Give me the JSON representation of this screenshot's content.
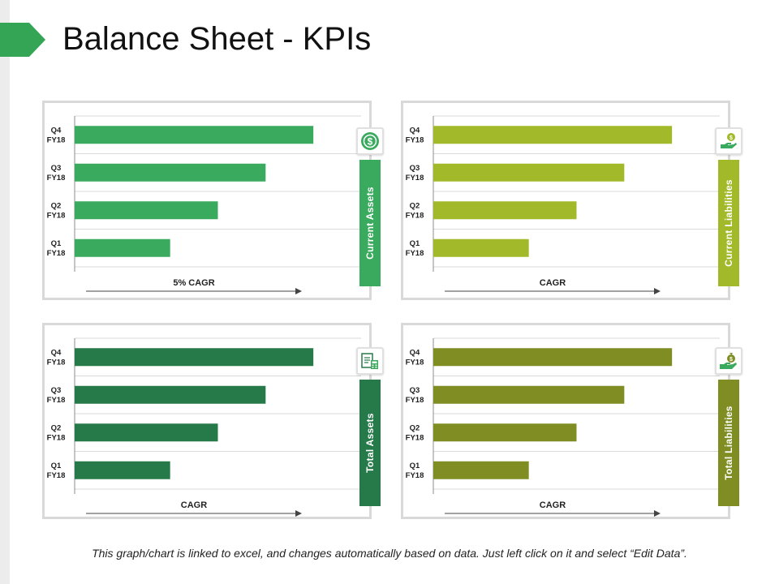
{
  "title": "Balance Sheet - KPIs",
  "footnote": "This graph/chart is linked to excel, and changes automatically based on data. Just left click on it and select “Edit Data”.",
  "chart_data": [
    {
      "type": "bar",
      "orientation": "horizontal",
      "name": "Current Assets",
      "icon": "dollar-coin-icon",
      "color": "#3aaa5e",
      "categories": [
        "Q4 FY18",
        "Q3 FY18",
        "Q2 FY18",
        "Q1 FY18"
      ],
      "tick_lines": [
        [
          "Q4",
          "FY18"
        ],
        [
          "Q3",
          "FY18"
        ],
        [
          "Q2",
          "FY18"
        ],
        [
          "Q1",
          "FY18"
        ]
      ],
      "values": [
        100,
        80,
        60,
        40
      ],
      "xlim": [
        0,
        120
      ],
      "xlabel": "5% CAGR",
      "grid": true
    },
    {
      "type": "bar",
      "orientation": "horizontal",
      "name": "Current Liabilities",
      "icon": "hand-coin-icon",
      "color": "#a2b92a",
      "categories": [
        "Q4 FY18",
        "Q3 FY18",
        "Q2 FY18",
        "Q1 FY18"
      ],
      "tick_lines": [
        [
          "Q4",
          "FY18"
        ],
        [
          "Q3",
          "FY18"
        ],
        [
          "Q2",
          "FY18"
        ],
        [
          "Q1",
          "FY18"
        ]
      ],
      "values": [
        100,
        80,
        60,
        40
      ],
      "xlim": [
        0,
        120
      ],
      "xlabel": "CAGR",
      "grid": true
    },
    {
      "type": "bar",
      "orientation": "horizontal",
      "name": "Total Assets",
      "icon": "calculator-report-icon",
      "color": "#267a49",
      "categories": [
        "Q4 FY18",
        "Q3 FY18",
        "Q2 FY18",
        "Q1 FY18"
      ],
      "tick_lines": [
        [
          "Q4",
          "FY18"
        ],
        [
          "Q3",
          "FY18"
        ],
        [
          "Q2",
          "FY18"
        ],
        [
          "Q1",
          "FY18"
        ]
      ],
      "values": [
        100,
        80,
        60,
        40
      ],
      "xlim": [
        0,
        120
      ],
      "xlabel": "CAGR",
      "grid": true
    },
    {
      "type": "bar",
      "orientation": "horizontal",
      "name": "Total Liabilities",
      "icon": "hand-money-bag-icon",
      "color": "#7f8d22",
      "categories": [
        "Q4 FY18",
        "Q3 FY18",
        "Q2 FY18",
        "Q1 FY18"
      ],
      "tick_lines": [
        [
          "Q4",
          "FY18"
        ],
        [
          "Q3",
          "FY18"
        ],
        [
          "Q2",
          "FY18"
        ],
        [
          "Q1",
          "FY18"
        ]
      ],
      "values": [
        100,
        80,
        60,
        40
      ],
      "xlim": [
        0,
        120
      ],
      "xlabel": "CAGR",
      "grid": true
    }
  ]
}
